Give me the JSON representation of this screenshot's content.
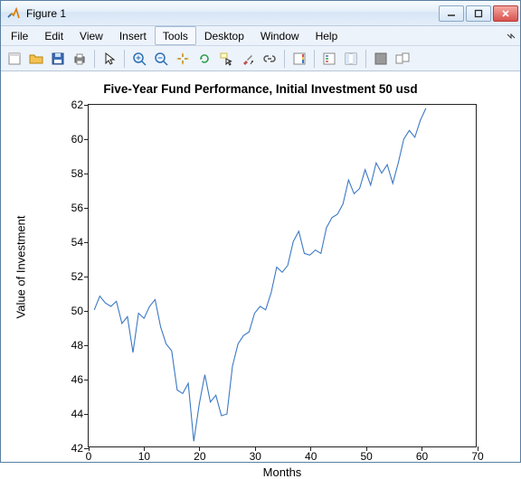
{
  "window": {
    "title": "Figure 1",
    "buttons": {
      "min": "minimize",
      "max": "maximize",
      "close": "close"
    }
  },
  "menu": {
    "items": [
      "File",
      "Edit",
      "View",
      "Insert",
      "Tools",
      "Desktop",
      "Window",
      "Help"
    ],
    "hover_index": 4
  },
  "toolbar": {
    "groups": [
      [
        "new-figure-icon",
        "open-icon",
        "save-icon",
        "print-icon"
      ],
      [
        "pointer-icon"
      ],
      [
        "zoom-in-icon",
        "zoom-out-icon",
        "pan-icon",
        "rotate-icon",
        "data-cursor-icon",
        "brush-icon",
        "link-icon"
      ],
      [
        "colorbar-icon"
      ],
      [
        "legend-icon",
        "plot-tools-icon"
      ],
      [
        "hide-tools-icon",
        "dock-icon"
      ]
    ]
  },
  "chart": {
    "type": "line",
    "title": "Five-Year Fund Performance, Initial Investment 50 usd",
    "title_fontsize": 13.5,
    "title_fontweight": "bold",
    "xlabel": "Months",
    "ylabel": "Value of Investment",
    "label_fontsize": 13,
    "xlim": [
      0,
      70
    ],
    "ylim": [
      42,
      62
    ],
    "xtick_step": 10,
    "ytick_step": 2,
    "xticks": [
      0,
      10,
      20,
      30,
      40,
      50,
      60,
      70
    ],
    "yticks": [
      42,
      44,
      46,
      48,
      50,
      52,
      54,
      56,
      58,
      60,
      62
    ],
    "line_color": "#3b78c4",
    "line_width": 1.1,
    "axis_color": "#222222",
    "background_color": "#ffffff",
    "grid": false,
    "series_x": [
      1,
      2,
      3,
      4,
      5,
      6,
      7,
      8,
      9,
      10,
      11,
      12,
      13,
      14,
      15,
      16,
      17,
      18,
      19,
      20,
      21,
      22,
      23,
      24,
      25,
      26,
      27,
      28,
      29,
      30,
      31,
      32,
      33,
      34,
      35,
      36,
      37,
      38,
      39,
      40,
      41,
      42,
      43,
      44,
      45,
      46,
      47,
      48,
      49,
      50,
      51,
      52,
      53,
      54,
      55,
      56,
      57,
      58,
      59,
      60,
      61
    ],
    "series_y": [
      50.0,
      50.8,
      50.4,
      50.2,
      50.5,
      49.2,
      49.6,
      47.5,
      49.8,
      49.5,
      50.2,
      50.6,
      49.0,
      48.0,
      47.6,
      45.3,
      45.1,
      45.7,
      42.3,
      44.5,
      46.2,
      44.6,
      45.0,
      43.8,
      43.9,
      46.7,
      48.0,
      48.5,
      48.7,
      49.8,
      50.2,
      50.0,
      51.0,
      52.5,
      52.2,
      52.6,
      54.0,
      54.6,
      53.3,
      53.2,
      53.5,
      53.3,
      54.8,
      55.4,
      55.6,
      56.2,
      57.6,
      56.8,
      57.1,
      58.2,
      57.3,
      58.6,
      58.0,
      58.5,
      57.4,
      58.6,
      60.0,
      60.5,
      60.1,
      61.1,
      61.8
    ]
  },
  "colors": {
    "titlebar_gradient": [
      "#f7fbff",
      "#e4eef9",
      "#d6e5f5"
    ],
    "menubar_bg": "#edf3fb",
    "toolbar_bg": "#edf3fb",
    "window_border": "#5a7fa0",
    "close_btn": "#d9534f"
  }
}
